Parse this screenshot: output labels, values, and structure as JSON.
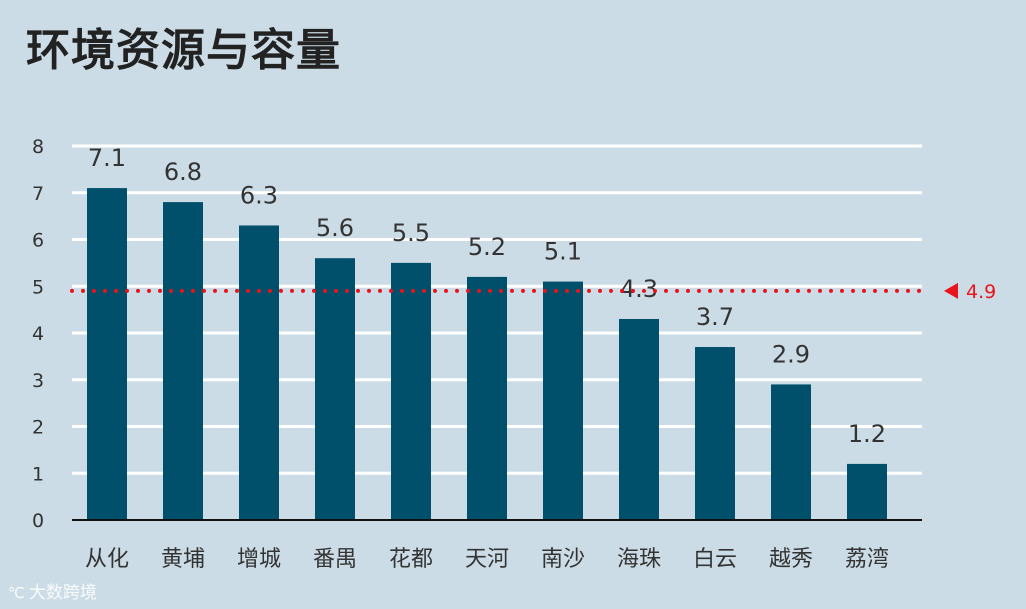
{
  "title": "环境资源与容量",
  "watermark": "大数跨境",
  "colors": {
    "background": "#cbdce6",
    "bar": "#00506b",
    "gridline": "#ffffff",
    "reference": "#e8141a",
    "text": "#333333"
  },
  "chart_data": {
    "type": "bar",
    "title": "环境资源与容量",
    "xlabel": "",
    "ylabel": "",
    "categories": [
      "从化",
      "黄埔",
      "增城",
      "番禺",
      "花都",
      "天河",
      "南沙",
      "海珠",
      "白云",
      "越秀",
      "荔湾"
    ],
    "values": [
      7.1,
      6.8,
      6.3,
      5.6,
      5.5,
      5.2,
      5.1,
      4.3,
      3.7,
      2.9,
      1.2
    ],
    "data_labels": [
      "7.1",
      "6.8",
      "6.3",
      "5.6",
      "5.5",
      "5.2",
      "5.1",
      "4.3",
      "3.7",
      "2.9",
      "1.2"
    ],
    "ylim": [
      0,
      8
    ],
    "yticks": [
      "0",
      "1",
      "2",
      "3",
      "4",
      "5",
      "6",
      "7",
      "8"
    ],
    "grid": true,
    "reference_line": {
      "value": 4.9,
      "label": "4.9",
      "style": "dotted"
    }
  }
}
